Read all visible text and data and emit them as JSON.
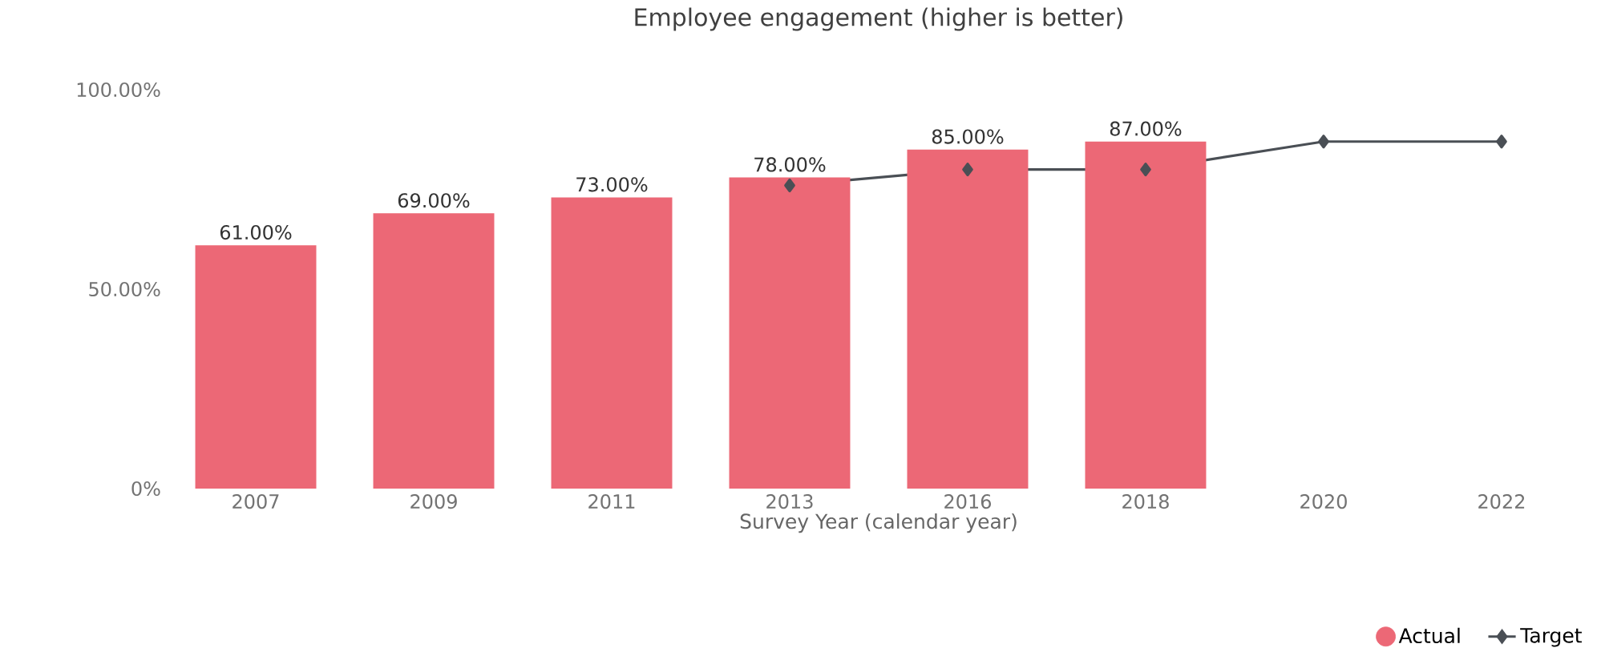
{
  "chart_data": {
    "type": "bar",
    "title": "Employee engagement (higher is better)",
    "xlabel": "Survey Year (calendar year)",
    "categories": [
      "2007",
      "2009",
      "2011",
      "2013",
      "2016",
      "2018",
      "2020",
      "2022"
    ],
    "series": [
      {
        "name": "Actual",
        "color": "#ec6876",
        "values": [
          61,
          69,
          73,
          78,
          85,
          87,
          null,
          null
        ],
        "value_labels": [
          "61.00%",
          "69.00%",
          "73.00%",
          "78.00%",
          "85.00%",
          "87.00%",
          null,
          null
        ]
      },
      {
        "name": "Target",
        "type": "line",
        "color": "#4a4f55",
        "marker": "diamond",
        "values": [
          null,
          null,
          null,
          76,
          80,
          80,
          87,
          87
        ]
      }
    ],
    "ylim": [
      0,
      100
    ],
    "yticks": [
      {
        "value": 0,
        "label": "0%"
      },
      {
        "value": 50,
        "label": "50.00%"
      },
      {
        "value": 100,
        "label": "100.00%"
      }
    ],
    "legend": "bottom right"
  }
}
